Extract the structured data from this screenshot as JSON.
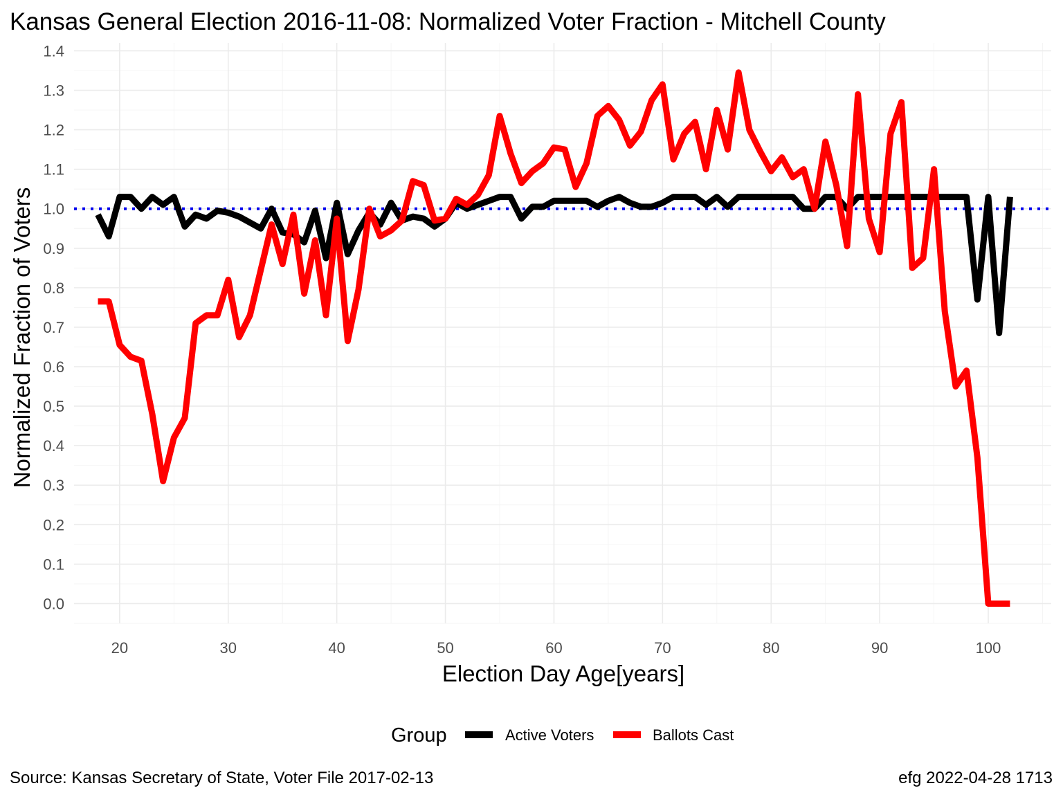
{
  "chart_data": {
    "type": "line",
    "title": "Kansas General Election 2016-11-08:  Normalized Voter Fraction - Mitchell County",
    "xlabel": "Election Day Age[years]",
    "ylabel": "Normalized Fraction of Voters",
    "xlim": [
      15.8,
      105.8
    ],
    "ylim": [
      -0.05,
      1.42
    ],
    "x_ticks": [
      20,
      30,
      40,
      50,
      60,
      70,
      80,
      90,
      100
    ],
    "y_ticks": [
      0.0,
      0.1,
      0.2,
      0.3,
      0.4,
      0.5,
      0.6,
      0.7,
      0.8,
      0.9,
      1.0,
      1.1,
      1.2,
      1.3,
      1.4
    ],
    "grid": true,
    "reference_line": {
      "y": 1.0,
      "style": "dotted",
      "color": "#0000ee"
    },
    "legend": {
      "title": "Group",
      "position": "bottom",
      "entries": [
        "Active Voters",
        "Ballots Cast"
      ]
    },
    "series": [
      {
        "name": "Active Voters",
        "color": "#000000",
        "x": [
          18,
          19,
          20,
          21,
          22,
          23,
          24,
          25,
          26,
          27,
          28,
          29,
          30,
          31,
          32,
          33,
          34,
          35,
          36,
          37,
          38,
          39,
          40,
          41,
          42,
          43,
          44,
          45,
          46,
          47,
          48,
          49,
          50,
          51,
          52,
          53,
          54,
          55,
          56,
          57,
          58,
          59,
          60,
          61,
          62,
          63,
          64,
          65,
          66,
          67,
          68,
          69,
          70,
          71,
          72,
          73,
          74,
          75,
          76,
          77,
          78,
          79,
          80,
          81,
          82,
          83,
          84,
          85,
          86,
          87,
          88,
          89,
          90,
          91,
          92,
          93,
          94,
          95,
          96,
          97,
          98,
          99,
          100,
          101,
          102
        ],
        "values": [
          0.985,
          0.93,
          1.03,
          1.03,
          1.0,
          1.03,
          1.01,
          1.03,
          0.955,
          0.985,
          0.975,
          0.995,
          0.99,
          0.98,
          0.965,
          0.95,
          1.0,
          0.94,
          0.935,
          0.915,
          0.995,
          0.875,
          1.015,
          0.885,
          0.945,
          0.99,
          0.96,
          1.015,
          0.97,
          0.98,
          0.975,
          0.955,
          0.975,
          1.015,
          1.0,
          1.01,
          1.02,
          1.03,
          1.03,
          0.975,
          1.005,
          1.005,
          1.02,
          1.02,
          1.02,
          1.02,
          1.005,
          1.02,
          1.03,
          1.015,
          1.005,
          1.005,
          1.015,
          1.03,
          1.03,
          1.03,
          1.01,
          1.03,
          1.005,
          1.03,
          1.03,
          1.03,
          1.03,
          1.03,
          1.03,
          1.0,
          1.0,
          1.03,
          1.03,
          1.0,
          1.03,
          1.03,
          1.03,
          1.03,
          1.03,
          1.03,
          1.03,
          1.03,
          1.03,
          1.03,
          1.03,
          0.77,
          1.03,
          0.685,
          1.03
        ]
      },
      {
        "name": "Ballots Cast",
        "color": "#ff0000",
        "x": [
          18,
          19,
          20,
          21,
          22,
          23,
          24,
          25,
          26,
          27,
          28,
          29,
          30,
          31,
          32,
          33,
          34,
          35,
          36,
          37,
          38,
          39,
          40,
          41,
          42,
          43,
          44,
          45,
          46,
          47,
          48,
          49,
          50,
          51,
          52,
          53,
          54,
          55,
          56,
          57,
          58,
          59,
          60,
          61,
          62,
          63,
          64,
          65,
          66,
          67,
          68,
          69,
          70,
          71,
          72,
          73,
          74,
          75,
          76,
          77,
          78,
          79,
          80,
          81,
          82,
          83,
          84,
          85,
          86,
          87,
          88,
          89,
          90,
          91,
          92,
          93,
          94,
          95,
          96,
          97,
          98,
          99,
          100,
          101,
          102
        ],
        "values": [
          0.765,
          0.765,
          0.655,
          0.625,
          0.615,
          0.48,
          0.31,
          0.42,
          0.47,
          0.71,
          0.73,
          0.73,
          0.82,
          0.675,
          0.73,
          0.845,
          0.96,
          0.86,
          0.985,
          0.785,
          0.92,
          0.73,
          0.975,
          0.665,
          0.795,
          1.0,
          0.93,
          0.945,
          0.97,
          1.07,
          1.06,
          0.97,
          0.975,
          1.025,
          1.01,
          1.035,
          1.085,
          1.235,
          1.14,
          1.065,
          1.095,
          1.115,
          1.155,
          1.15,
          1.055,
          1.115,
          1.235,
          1.26,
          1.225,
          1.16,
          1.195,
          1.275,
          1.315,
          1.125,
          1.19,
          1.22,
          1.1,
          1.25,
          1.15,
          1.345,
          1.2,
          1.145,
          1.095,
          1.13,
          1.08,
          1.1,
          1.0,
          1.17,
          1.06,
          0.905,
          1.29,
          0.975,
          0.89,
          1.19,
          1.27,
          0.85,
          0.875,
          1.1,
          0.74,
          0.55,
          0.59,
          0.37,
          0.0,
          0.0,
          0.0
        ]
      }
    ]
  },
  "footer": {
    "source": "Source:  Kansas Secretary of State, Voter File  2017-02-13",
    "credit": "efg 2022-04-28 1713"
  }
}
